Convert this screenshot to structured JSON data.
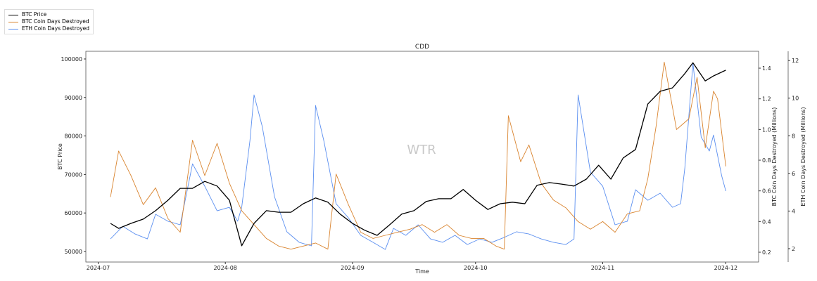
{
  "chart_data": {
    "type": "line",
    "title": "CDD",
    "xlabel": "Time",
    "ylabel": "BTC Price",
    "ylabel_right": "BTC Coin Days Destroyed (Millions)",
    "ylabel_right2": "ETH Coin Days Destroyed (Millions)",
    "watermark": "WTR",
    "legend_placement": "top-left outside",
    "grid": false,
    "xlim": [
      "2024-06-28",
      "2024-12-09"
    ],
    "ylim": [
      47260,
      102000
    ],
    "ylim_right": [
      0.136,
      1.51
    ],
    "ylim_right2": [
      1.29,
      12.49
    ],
    "x_ticks": [
      "2024-07",
      "2024-08",
      "2024-09",
      "2024-10",
      "2024-11",
      "2024-12"
    ],
    "y_ticks": [
      50000,
      60000,
      70000,
      80000,
      90000,
      100000
    ],
    "y_ticks_right": [
      0.2,
      0.4,
      0.6,
      0.8,
      1.0,
      1.2,
      1.4
    ],
    "y_ticks_right2": [
      2,
      4,
      6,
      8,
      10,
      12
    ],
    "series": [
      {
        "name": "BTC Price",
        "color": "#000000",
        "axis": "left",
        "x": [
          "2024-07-04",
          "2024-07-06",
          "2024-07-09",
          "2024-07-12",
          "2024-07-15",
          "2024-07-18",
          "2024-07-21",
          "2024-07-24",
          "2024-07-27",
          "2024-07-30",
          "2024-08-02",
          "2024-08-05",
          "2024-08-08",
          "2024-08-11",
          "2024-08-14",
          "2024-08-17",
          "2024-08-20",
          "2024-08-23",
          "2024-08-26",
          "2024-08-29",
          "2024-09-01",
          "2024-09-04",
          "2024-09-07",
          "2024-09-10",
          "2024-09-13",
          "2024-09-16",
          "2024-09-19",
          "2024-09-22",
          "2024-09-25",
          "2024-09-28",
          "2024-10-01",
          "2024-10-04",
          "2024-10-07",
          "2024-10-10",
          "2024-10-13",
          "2024-10-16",
          "2024-10-19",
          "2024-10-22",
          "2024-10-25",
          "2024-10-28",
          "2024-10-31",
          "2024-11-03",
          "2024-11-06",
          "2024-11-09",
          "2024-11-12",
          "2024-11-15",
          "2024-11-18",
          "2024-11-21",
          "2024-11-23",
          "2024-11-26",
          "2024-11-28",
          "2024-12-01"
        ],
        "values": [
          57300,
          56000,
          57300,
          58400,
          60600,
          63300,
          66400,
          66400,
          68200,
          67000,
          63300,
          51500,
          57300,
          60600,
          60200,
          60200,
          62400,
          63900,
          62800,
          59700,
          57300,
          55500,
          54200,
          56900,
          59700,
          60600,
          63000,
          63700,
          63700,
          66100,
          63300,
          60900,
          62400,
          62800,
          62400,
          67200,
          67900,
          67500,
          67000,
          68800,
          72400,
          68800,
          74300,
          76500,
          88300,
          91600,
          92500,
          96200,
          99000,
          94300,
          95600,
          97100
        ]
      },
      {
        "name": "BTC Coin Days Destroyed",
        "color": "#d9842f",
        "axis": "right",
        "x": [
          "2024-07-04",
          "2024-07-06",
          "2024-07-09",
          "2024-07-12",
          "2024-07-15",
          "2024-07-18",
          "2024-07-21",
          "2024-07-24",
          "2024-07-27",
          "2024-07-30",
          "2024-08-02",
          "2024-08-05",
          "2024-08-08",
          "2024-08-11",
          "2024-08-14",
          "2024-08-17",
          "2024-08-20",
          "2024-08-23",
          "2024-08-26",
          "2024-08-28",
          "2024-08-31",
          "2024-09-03",
          "2024-09-06",
          "2024-09-09",
          "2024-09-12",
          "2024-09-15",
          "2024-09-18",
          "2024-09-21",
          "2024-09-24",
          "2024-09-27",
          "2024-09-30",
          "2024-10-03",
          "2024-10-06",
          "2024-10-08",
          "2024-10-09",
          "2024-10-12",
          "2024-10-14",
          "2024-10-17",
          "2024-10-20",
          "2024-10-23",
          "2024-10-26",
          "2024-10-29",
          "2024-11-01",
          "2024-11-04",
          "2024-11-07",
          "2024-11-10",
          "2024-11-12",
          "2024-11-14",
          "2024-11-16",
          "2024-11-19",
          "2024-11-22",
          "2024-11-24",
          "2024-11-26",
          "2024-11-28",
          "2024-11-29",
          "2024-12-01"
        ],
        "values": [
          0.56,
          0.86,
          0.7,
          0.51,
          0.62,
          0.42,
          0.33,
          0.93,
          0.7,
          0.91,
          0.65,
          0.47,
          0.38,
          0.29,
          0.24,
          0.22,
          0.24,
          0.26,
          0.22,
          0.71,
          0.51,
          0.33,
          0.29,
          0.31,
          0.33,
          0.35,
          0.38,
          0.33,
          0.38,
          0.31,
          0.29,
          0.29,
          0.24,
          0.22,
          1.09,
          0.79,
          0.9,
          0.65,
          0.54,
          0.49,
          0.4,
          0.35,
          0.4,
          0.33,
          0.45,
          0.47,
          0.68,
          1.02,
          1.44,
          1.0,
          1.07,
          1.34,
          0.88,
          1.25,
          1.2,
          0.76
        ]
      },
      {
        "name": "ETH Coin Days Destroyed",
        "color": "#5b8ff0",
        "axis": "right2",
        "x": [
          "2024-07-04",
          "2024-07-07",
          "2024-07-10",
          "2024-07-13",
          "2024-07-15",
          "2024-07-18",
          "2024-07-21",
          "2024-07-24",
          "2024-07-27",
          "2024-07-30",
          "2024-08-02",
          "2024-08-04",
          "2024-08-05",
          "2024-08-07",
          "2024-08-08",
          "2024-08-10",
          "2024-08-13",
          "2024-08-16",
          "2024-08-19",
          "2024-08-22",
          "2024-08-23",
          "2024-08-25",
          "2024-08-28",
          "2024-08-31",
          "2024-09-03",
          "2024-09-06",
          "2024-09-09",
          "2024-09-11",
          "2024-09-14",
          "2024-09-17",
          "2024-09-20",
          "2024-09-23",
          "2024-09-26",
          "2024-09-29",
          "2024-10-02",
          "2024-10-05",
          "2024-10-08",
          "2024-10-11",
          "2024-10-14",
          "2024-10-17",
          "2024-10-20",
          "2024-10-23",
          "2024-10-25",
          "2024-10-26",
          "2024-10-29",
          "2024-11-01",
          "2024-11-04",
          "2024-11-07",
          "2024-11-09",
          "2024-11-12",
          "2024-11-15",
          "2024-11-18",
          "2024-11-20",
          "2024-11-21",
          "2024-11-22",
          "2024-11-23",
          "2024-11-25",
          "2024-11-27",
          "2024-11-28",
          "2024-11-30",
          "2024-12-01"
        ],
        "values": [
          2.52,
          3.19,
          2.78,
          2.52,
          3.83,
          3.46,
          3.27,
          6.51,
          5.32,
          4.01,
          4.2,
          3.46,
          4.2,
          7.75,
          10.17,
          8.49,
          4.76,
          2.9,
          2.34,
          2.15,
          9.61,
          7.75,
          4.39,
          3.64,
          2.71,
          2.34,
          1.96,
          3.08,
          2.71,
          3.27,
          2.52,
          2.34,
          2.71,
          2.22,
          2.52,
          2.34,
          2.6,
          2.9,
          2.78,
          2.52,
          2.34,
          2.22,
          2.52,
          10.17,
          6.07,
          5.32,
          3.27,
          3.46,
          5.13,
          4.57,
          4.95,
          4.2,
          4.39,
          6.25,
          9.05,
          11.85,
          7.93,
          7.19,
          8.04,
          5.88,
          5.06
        ]
      }
    ]
  }
}
